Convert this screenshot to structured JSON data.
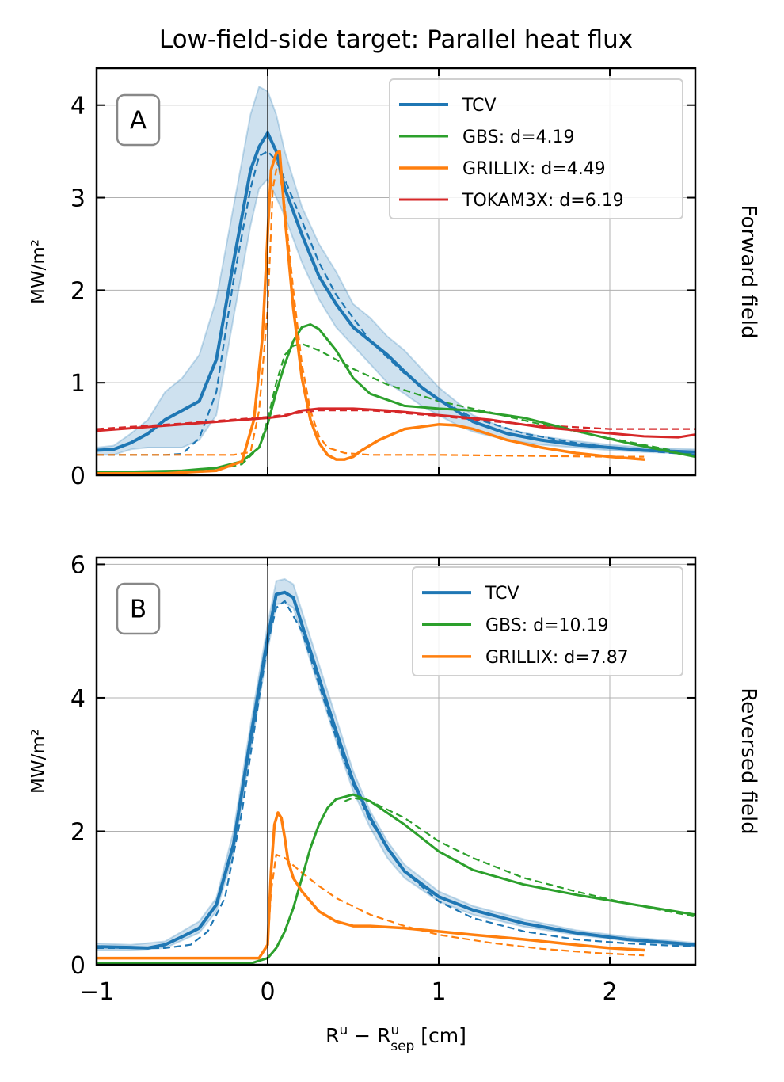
{
  "figure": {
    "title": "Low-field-side target: Parallel heat flux",
    "xlabel_main": "R",
    "xlabel_sup1": "u",
    "xlabel_minus": " − R",
    "xlabel_sup2": "u",
    "xlabel_sub2": "sep",
    "xlabel_unit": " [cm]"
  },
  "colors": {
    "TCV": "#1f77b4",
    "GBS": "#2ca02c",
    "GRILLIX": "#ff7f0e",
    "TOKAM3X": "#d62728",
    "band": "#1f77b4"
  },
  "chart_data": [
    {
      "type": "line",
      "panel": "A",
      "side_label": "Forward field",
      "ylabel": "MW/m²",
      "xlim": [
        -1,
        2.5
      ],
      "ylim": [
        0,
        4.4
      ],
      "xticks": [
        -1,
        0,
        1,
        2
      ],
      "yticks": [
        0,
        1,
        2,
        3,
        4
      ],
      "ytick_labels": [
        "0",
        "1",
        "2",
        "3",
        "4"
      ],
      "grid": true,
      "legend_position": "top-right",
      "vline_x": 0,
      "band": {
        "x": [
          -1,
          -0.9,
          -0.8,
          -0.7,
          -0.6,
          -0.5,
          -0.4,
          -0.3,
          -0.2,
          -0.1,
          -0.05,
          0,
          0.05,
          0.1,
          0.2,
          0.3,
          0.4,
          0.5,
          0.6,
          0.7,
          0.8,
          0.9,
          1.0,
          1.1,
          1.2,
          1.4,
          1.6,
          1.8,
          2.0,
          2.2,
          2.5
        ],
        "upper": [
          0.3,
          0.32,
          0.45,
          0.6,
          0.9,
          1.05,
          1.3,
          1.9,
          2.9,
          3.9,
          4.2,
          4.15,
          3.9,
          3.5,
          2.9,
          2.5,
          2.2,
          1.85,
          1.7,
          1.5,
          1.35,
          1.15,
          0.95,
          0.8,
          0.65,
          0.5,
          0.42,
          0.37,
          0.33,
          0.3,
          0.28
        ],
        "lower": [
          0.22,
          0.22,
          0.28,
          0.3,
          0.3,
          0.3,
          0.38,
          0.65,
          1.7,
          2.7,
          3.1,
          3.2,
          3.0,
          2.8,
          2.3,
          1.9,
          1.6,
          1.4,
          1.2,
          1.0,
          0.88,
          0.75,
          0.65,
          0.55,
          0.47,
          0.38,
          0.33,
          0.3,
          0.27,
          0.25,
          0.23
        ]
      },
      "series": [
        {
          "name": "TCV",
          "color_key": "TCV",
          "width": 4,
          "legend_label": "TCV",
          "x": [
            -1,
            -0.9,
            -0.8,
            -0.7,
            -0.6,
            -0.5,
            -0.4,
            -0.3,
            -0.2,
            -0.1,
            -0.05,
            0,
            0.05,
            0.1,
            0.2,
            0.3,
            0.4,
            0.5,
            0.6,
            0.7,
            0.8,
            0.9,
            1.0,
            1.1,
            1.2,
            1.4,
            1.6,
            1.8,
            2.0,
            2.2,
            2.5
          ],
          "y": [
            0.27,
            0.28,
            0.35,
            0.45,
            0.6,
            0.7,
            0.8,
            1.25,
            2.3,
            3.3,
            3.55,
            3.7,
            3.5,
            3.1,
            2.6,
            2.15,
            1.85,
            1.6,
            1.45,
            1.3,
            1.12,
            0.95,
            0.82,
            0.7,
            0.58,
            0.45,
            0.38,
            0.33,
            0.3,
            0.27,
            0.25
          ]
        },
        {
          "name": "TCV fit",
          "color_key": "TCV",
          "width": 2.2,
          "dashed": true,
          "x": [
            -1,
            -0.6,
            -0.5,
            -0.4,
            -0.3,
            -0.2,
            -0.1,
            -0.05,
            0,
            0.05,
            0.1,
            0.2,
            0.3,
            0.4,
            0.6,
            0.8,
            1.0,
            1.2,
            1.5,
            1.8,
            2.1,
            2.5
          ],
          "y": [
            0.22,
            0.22,
            0.23,
            0.4,
            0.9,
            2.1,
            3.1,
            3.45,
            3.5,
            3.4,
            3.2,
            2.75,
            2.3,
            1.95,
            1.45,
            1.1,
            0.82,
            0.62,
            0.45,
            0.35,
            0.28,
            0.22
          ]
        },
        {
          "name": "GBS",
          "color_key": "GBS",
          "width": 3,
          "legend_label": "GBS: d=4.19",
          "x": [
            -1,
            -0.5,
            -0.3,
            -0.15,
            -0.05,
            0,
            0.05,
            0.1,
            0.15,
            0.2,
            0.25,
            0.3,
            0.4,
            0.5,
            0.6,
            0.8,
            1.0,
            1.2,
            1.5,
            1.8,
            2.1,
            2.5
          ],
          "y": [
            0.03,
            0.05,
            0.08,
            0.15,
            0.3,
            0.55,
            0.9,
            1.2,
            1.45,
            1.6,
            1.63,
            1.58,
            1.35,
            1.05,
            0.88,
            0.75,
            0.72,
            0.7,
            0.62,
            0.48,
            0.35,
            0.2
          ]
        },
        {
          "name": "GBS fit",
          "color_key": "GBS",
          "width": 2.2,
          "dashed": true,
          "x": [
            -1,
            -0.5,
            -0.3,
            -0.15,
            -0.05,
            0,
            0.05,
            0.1,
            0.15,
            0.2,
            0.3,
            0.5,
            0.7,
            1.0,
            1.3,
            1.6,
            2.0,
            2.5
          ],
          "y": [
            0.02,
            0.03,
            0.06,
            0.12,
            0.3,
            0.6,
            1.0,
            1.3,
            1.4,
            1.42,
            1.35,
            1.15,
            0.98,
            0.8,
            0.68,
            0.55,
            0.4,
            0.22
          ]
        },
        {
          "name": "GRILLIX",
          "color_key": "GRILLIX",
          "width": 3.5,
          "legend_label": "GRILLIX: d=4.49",
          "x": [
            -1,
            -0.6,
            -0.3,
            -0.15,
            -0.08,
            -0.03,
            0,
            0.02,
            0.05,
            0.07,
            0.1,
            0.15,
            0.2,
            0.25,
            0.3,
            0.35,
            0.4,
            0.45,
            0.5,
            0.55,
            0.65,
            0.8,
            1.0,
            1.1,
            1.2,
            1.4,
            1.6,
            1.8,
            2.0,
            2.2
          ],
          "y": [
            0.02,
            0.02,
            0.05,
            0.15,
            0.6,
            1.5,
            2.6,
            3.3,
            3.48,
            3.5,
            2.8,
            1.8,
            1.05,
            0.6,
            0.35,
            0.22,
            0.17,
            0.17,
            0.2,
            0.27,
            0.38,
            0.5,
            0.55,
            0.54,
            0.5,
            0.38,
            0.3,
            0.24,
            0.2,
            0.17
          ]
        },
        {
          "name": "GRILLIX fit",
          "color_key": "GRILLIX",
          "width": 2.2,
          "dashed": true,
          "x": [
            -1,
            -0.2,
            -0.1,
            -0.05,
            0,
            0.03,
            0.06,
            0.1,
            0.15,
            0.2,
            0.25,
            0.3,
            0.35,
            0.45,
            0.6,
            1.0,
            1.5,
            2.0,
            2.2
          ],
          "y": [
            0.22,
            0.22,
            0.25,
            0.7,
            1.8,
            3.1,
            3.4,
            2.9,
            2.0,
            1.2,
            0.7,
            0.42,
            0.3,
            0.24,
            0.22,
            0.22,
            0.21,
            0.2,
            0.2
          ]
        },
        {
          "name": "TOKAM3X",
          "color_key": "TOKAM3X",
          "width": 3,
          "legend_label": "TOKAM3X: d=6.19",
          "x": [
            -1,
            -0.5,
            0,
            0.1,
            0.2,
            0.3,
            0.5,
            0.7,
            1.0,
            1.3,
            1.6,
            1.9,
            2.2,
            2.4,
            2.5
          ],
          "y": [
            0.48,
            0.55,
            0.62,
            0.64,
            0.7,
            0.72,
            0.72,
            0.7,
            0.65,
            0.6,
            0.52,
            0.47,
            0.42,
            0.41,
            0.44
          ]
        },
        {
          "name": "TOKAM3X fit",
          "color_key": "TOKAM3X",
          "width": 2.2,
          "dashed": true,
          "x": [
            -1,
            -0.5,
            0,
            0.3,
            0.6,
            1.0,
            1.5,
            2.0,
            2.5
          ],
          "y": [
            0.5,
            0.56,
            0.63,
            0.7,
            0.7,
            0.64,
            0.55,
            0.5,
            0.5
          ]
        }
      ]
    },
    {
      "type": "line",
      "panel": "B",
      "side_label": "Reversed field",
      "ylabel": "MW/m²",
      "xlim": [
        -1,
        2.5
      ],
      "ylim": [
        0,
        6.1
      ],
      "xticks": [
        -1,
        0,
        1,
        2
      ],
      "xtick_labels": [
        "−1",
        "0",
        "1",
        "2"
      ],
      "yticks": [
        0,
        2,
        4,
        6
      ],
      "ytick_labels": [
        "0",
        "2",
        "4",
        "6"
      ],
      "grid": true,
      "legend_position": "top-right",
      "vline_x": 0,
      "band": {
        "x": [
          -1,
          -0.8,
          -0.6,
          -0.4,
          -0.3,
          -0.2,
          -0.1,
          0,
          0.05,
          0.1,
          0.15,
          0.2,
          0.3,
          0.4,
          0.5,
          0.6,
          0.7,
          0.8,
          1.0,
          1.2,
          1.5,
          1.8,
          2.1,
          2.5
        ],
        "upper": [
          0.32,
          0.3,
          0.35,
          0.65,
          1.0,
          2.0,
          3.6,
          5.1,
          5.75,
          5.78,
          5.7,
          5.3,
          4.5,
          3.7,
          2.9,
          2.3,
          1.85,
          1.5,
          1.1,
          0.88,
          0.68,
          0.52,
          0.42,
          0.33
        ],
        "lower": [
          0.22,
          0.22,
          0.25,
          0.48,
          0.8,
          1.65,
          3.2,
          4.7,
          5.4,
          5.42,
          5.35,
          4.95,
          4.15,
          3.35,
          2.6,
          2.05,
          1.6,
          1.3,
          0.95,
          0.75,
          0.57,
          0.45,
          0.36,
          0.27
        ]
      },
      "series": [
        {
          "name": "TCV",
          "color_key": "TCV",
          "width": 4,
          "legend_label": "TCV",
          "x": [
            -1,
            -0.8,
            -0.7,
            -0.6,
            -0.5,
            -0.4,
            -0.3,
            -0.2,
            -0.1,
            0,
            0.05,
            0.1,
            0.15,
            0.2,
            0.3,
            0.4,
            0.5,
            0.6,
            0.7,
            0.8,
            1.0,
            1.2,
            1.5,
            1.8,
            2.1,
            2.5
          ],
          "y": [
            0.27,
            0.26,
            0.25,
            0.3,
            0.42,
            0.55,
            0.9,
            1.8,
            3.4,
            4.9,
            5.55,
            5.58,
            5.5,
            5.1,
            4.3,
            3.5,
            2.75,
            2.2,
            1.75,
            1.4,
            1.02,
            0.82,
            0.62,
            0.48,
            0.38,
            0.3
          ]
        },
        {
          "name": "TCV fit",
          "color_key": "TCV",
          "width": 2.2,
          "dashed": true,
          "x": [
            -1,
            -0.6,
            -0.45,
            -0.35,
            -0.25,
            -0.15,
            -0.05,
            0,
            0.05,
            0.1,
            0.2,
            0.3,
            0.4,
            0.5,
            0.6,
            0.8,
            1.0,
            1.2,
            1.5,
            1.8,
            2.1,
            2.5
          ],
          "y": [
            0.25,
            0.25,
            0.3,
            0.5,
            1.0,
            2.3,
            4.0,
            4.8,
            5.35,
            5.45,
            5.0,
            4.2,
            3.4,
            2.7,
            2.15,
            1.4,
            0.95,
            0.7,
            0.5,
            0.38,
            0.32,
            0.27
          ]
        },
        {
          "name": "GBS",
          "color_key": "GBS",
          "width": 3,
          "legend_label": "GBS: d=10.19",
          "x": [
            -1,
            -0.1,
            0,
            0.05,
            0.1,
            0.15,
            0.2,
            0.25,
            0.3,
            0.35,
            0.4,
            0.5,
            0.6,
            0.8,
            1.0,
            1.2,
            1.5,
            1.8,
            2.1,
            2.5
          ],
          "y": [
            0.02,
            0.02,
            0.1,
            0.25,
            0.5,
            0.85,
            1.3,
            1.75,
            2.1,
            2.35,
            2.48,
            2.55,
            2.45,
            2.1,
            1.7,
            1.42,
            1.2,
            1.05,
            0.92,
            0.75
          ]
        },
        {
          "name": "GBS fit",
          "color_key": "GBS",
          "width": 2.2,
          "dashed": true,
          "x": [
            0.45,
            0.5,
            0.6,
            0.8,
            1.0,
            1.2,
            1.5,
            1.8,
            2.1,
            2.5
          ],
          "y": [
            2.45,
            2.5,
            2.45,
            2.2,
            1.85,
            1.6,
            1.3,
            1.1,
            0.92,
            0.72
          ]
        },
        {
          "name": "GRILLIX",
          "color_key": "GRILLIX",
          "width": 3.5,
          "legend_label": "GRILLIX: d=7.87",
          "x": [
            -1,
            -0.05,
            0,
            0.02,
            0.04,
            0.06,
            0.08,
            0.1,
            0.12,
            0.15,
            0.2,
            0.3,
            0.4,
            0.5,
            0.6,
            0.8,
            1.0,
            1.2,
            1.5,
            1.8,
            2.0,
            2.2
          ],
          "y": [
            0.1,
            0.1,
            0.3,
            1.4,
            2.1,
            2.28,
            2.2,
            1.9,
            1.55,
            1.3,
            1.1,
            0.8,
            0.65,
            0.58,
            0.58,
            0.55,
            0.5,
            0.45,
            0.38,
            0.3,
            0.25,
            0.22
          ]
        },
        {
          "name": "GRILLIX fit",
          "color_key": "GRILLIX",
          "width": 2.2,
          "dashed": true,
          "x": [
            -1,
            -0.05,
            0,
            0.02,
            0.05,
            0.1,
            0.2,
            0.3,
            0.4,
            0.6,
            0.8,
            1.0,
            1.3,
            1.6,
            1.9,
            2.2
          ],
          "y": [
            0.1,
            0.1,
            0.3,
            1.1,
            1.65,
            1.6,
            1.38,
            1.18,
            1.0,
            0.75,
            0.58,
            0.45,
            0.33,
            0.24,
            0.18,
            0.14
          ]
        }
      ]
    }
  ]
}
